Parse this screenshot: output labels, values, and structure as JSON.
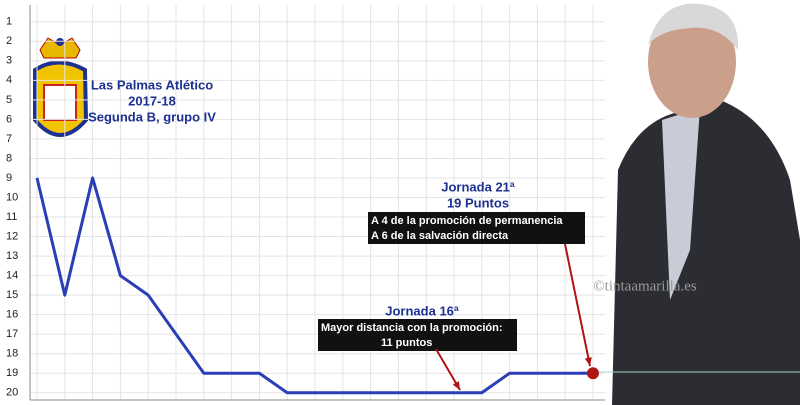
{
  "chart_data": {
    "type": "line",
    "title": "Las Palmas Atlético",
    "subtitle": [
      "2017-18",
      "Segunda B, grupo IV"
    ],
    "categories": [
      null,
      null,
      null,
      null,
      null,
      null,
      null,
      null,
      null,
      null,
      null,
      null,
      null,
      null,
      null,
      null,
      null,
      null,
      null,
      null,
      null
    ],
    "series": [
      {
        "name": "Las Palmas Atlético",
        "color": "#2a3fb5",
        "values": [
          9,
          15,
          9,
          14,
          15,
          17,
          19,
          19,
          19,
          20,
          20,
          20,
          20,
          20,
          20,
          20,
          20,
          19,
          19,
          19,
          19
        ]
      }
    ],
    "ylim": [
      20.5,
      0.5
    ],
    "yticks": [
      1,
      2,
      3,
      4,
      5,
      6,
      7,
      8,
      9,
      10,
      11,
      12,
      13,
      14,
      15,
      16,
      17,
      18,
      19,
      20
    ],
    "grid": true,
    "highlight_color": "#b01515",
    "annotations": [
      {
        "title": [
          "Jornada 21ª",
          "19 Puntos"
        ],
        "box": [
          "A 4 de la promoción de permanencia",
          "A 6 de la salvación directa"
        ]
      },
      {
        "title": [
          "Jornada 16ª"
        ],
        "box": [
          "Mayor distancia con la promoción:",
          "11 puntos"
        ]
      }
    ],
    "watermark": "©tintaamarilla.es"
  }
}
